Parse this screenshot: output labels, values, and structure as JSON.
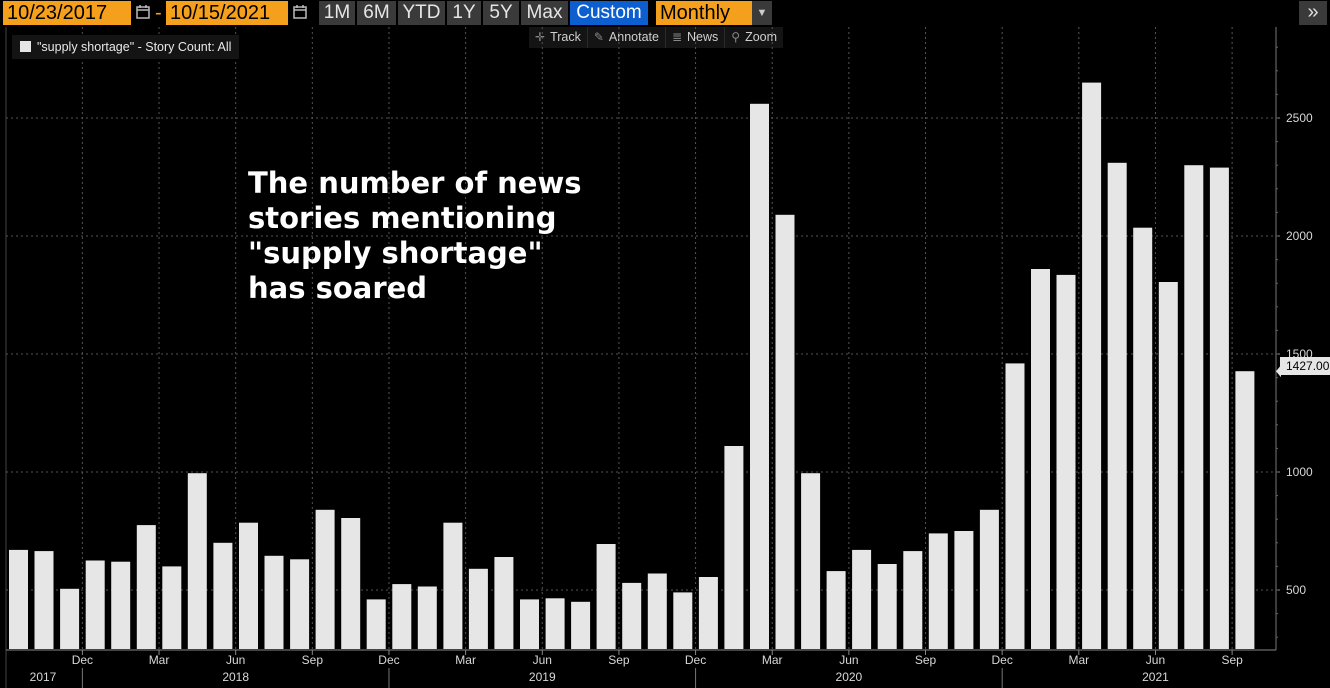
{
  "toolbar": {
    "start_date": "10/23/2017",
    "separator": "-",
    "end_date": "10/15/2021",
    "ranges": [
      "1M",
      "6M",
      "YTD",
      "1Y",
      "5Y",
      "Max",
      "Custom"
    ],
    "active_range": "Custom",
    "period": "Monthly",
    "expand_label": "»"
  },
  "chart_tools": [
    {
      "label": "Track",
      "icon": "crosshair-icon"
    },
    {
      "label": "Annotate",
      "icon": "pen-icon"
    },
    {
      "label": "News",
      "icon": "news-icon"
    },
    {
      "label": "Zoom",
      "icon": "magnifier-icon"
    }
  ],
  "legend": {
    "label": "\"supply shortage\" - Story Count: All"
  },
  "annotation": "The number of news\nstories mentioning\n\"supply shortage\"\nhas soared",
  "colors": {
    "background": "#000000",
    "bar": "#e6e6e6",
    "date_field": "#f5a01c",
    "active_button": "#0d5fd0",
    "grid": "#555555"
  },
  "chart_data": {
    "type": "bar",
    "title": "",
    "xlabel": "",
    "ylabel": "",
    "series": [
      {
        "name": "\"supply shortage\" - Story Count: All",
        "values": [
          670,
          665,
          505,
          625,
          620,
          775,
          600,
          995,
          700,
          785,
          645,
          630,
          840,
          805,
          460,
          525,
          515,
          785,
          590,
          640,
          460,
          465,
          450,
          695,
          530,
          570,
          490,
          555,
          1110,
          2560,
          2090,
          995,
          580,
          670,
          610,
          665,
          740,
          750,
          840,
          1460,
          1860,
          1835,
          2650,
          2310,
          2035,
          1805,
          2300,
          2290,
          1427
        ]
      }
    ],
    "months": [
      "2017-10",
      "2017-11",
      "2017-12",
      "2018-01",
      "2018-02",
      "2018-03",
      "2018-04",
      "2018-05",
      "2018-06",
      "2018-07",
      "2018-08",
      "2018-09",
      "2018-10",
      "2018-11",
      "2018-12",
      "2019-01",
      "2019-02",
      "2019-03",
      "2019-04",
      "2019-05",
      "2019-06",
      "2019-07",
      "2019-08",
      "2019-09",
      "2019-10",
      "2019-11",
      "2019-12",
      "2020-01",
      "2020-02",
      "2020-03",
      "2020-04",
      "2020-05",
      "2020-06",
      "2020-07",
      "2020-08",
      "2020-09",
      "2020-10",
      "2020-11",
      "2020-12",
      "2021-01",
      "2021-02",
      "2021-03",
      "2021-04",
      "2021-05",
      "2021-06",
      "2021-07",
      "2021-08",
      "2021-09",
      "2021-10"
    ],
    "ylim": [
      250,
      2850
    ],
    "y_ticks": [
      "500",
      "1000",
      "1500",
      "2000",
      "2500"
    ],
    "x_month_ticks": [
      {
        "label": "Dec",
        "month": "2017-12"
      },
      {
        "label": "Mar",
        "month": "2018-03"
      },
      {
        "label": "Jun",
        "month": "2018-06"
      },
      {
        "label": "Sep",
        "month": "2018-09"
      },
      {
        "label": "Dec",
        "month": "2018-12"
      },
      {
        "label": "Mar",
        "month": "2019-03"
      },
      {
        "label": "Jun",
        "month": "2019-06"
      },
      {
        "label": "Sep",
        "month": "2019-09"
      },
      {
        "label": "Dec",
        "month": "2019-12"
      },
      {
        "label": "Mar",
        "month": "2020-03"
      },
      {
        "label": "Jun",
        "month": "2020-06"
      },
      {
        "label": "Sep",
        "month": "2020-09"
      },
      {
        "label": "Dec",
        "month": "2020-12"
      },
      {
        "label": "Mar",
        "month": "2021-03"
      },
      {
        "label": "Jun",
        "month": "2021-06"
      },
      {
        "label": "Sep",
        "month": "2021-09"
      }
    ],
    "x_year_labels": [
      {
        "label": "2017",
        "month": "2017-10"
      },
      {
        "label": "2018",
        "month": "2018-06"
      },
      {
        "label": "2019",
        "month": "2019-06"
      },
      {
        "label": "2020",
        "month": "2020-06"
      },
      {
        "label": "2021",
        "month": "2021-06"
      }
    ],
    "last_value_label": "1427.00",
    "grid": true,
    "y_axis_side": "right",
    "legend_position": "top-left"
  }
}
